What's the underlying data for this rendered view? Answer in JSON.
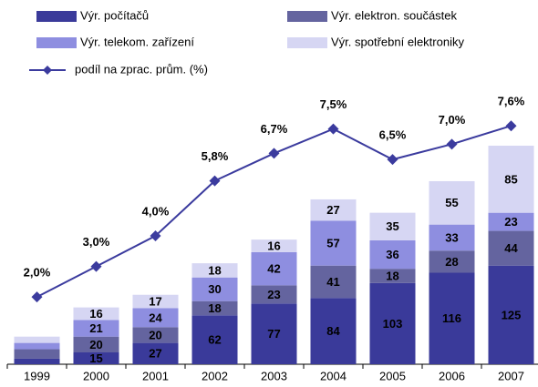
{
  "chart_data": {
    "type": "bar",
    "categories": [
      "1999",
      "2000",
      "2001",
      "2002",
      "2003",
      "2004",
      "2005",
      "2006",
      "2007"
    ],
    "series": [
      {
        "name": "Výr. počítačů",
        "color": "#3a3a9a",
        "values": [
          7,
          15,
          27,
          62,
          77,
          84,
          103,
          116,
          125
        ],
        "value_labels": [
          null,
          "15",
          "27",
          "62",
          "77",
          "84",
          "103",
          "116",
          "125"
        ]
      },
      {
        "name": "Výr. elektron. součástek",
        "color": "#64649f",
        "values": [
          12,
          20,
          20,
          18,
          23,
          41,
          18,
          28,
          44
        ],
        "value_labels": [
          null,
          "20",
          "20",
          "18",
          "23",
          "41",
          "18",
          "28",
          "44"
        ]
      },
      {
        "name": "Výr. telekom. zařízení",
        "color": "#8e8ee0",
        "values": [
          8,
          21,
          24,
          30,
          42,
          57,
          36,
          33,
          23
        ],
        "value_labels": [
          null,
          "21",
          "24",
          "30",
          "42",
          "57",
          "36",
          "33",
          "23"
        ]
      },
      {
        "name": "Výr. spotřební elektroniky",
        "color": "#d6d6f3",
        "values": [
          8,
          16,
          17,
          18,
          16,
          27,
          35,
          55,
          85
        ],
        "value_labels": [
          null,
          "16",
          "17",
          "18",
          "16",
          "27",
          "35",
          "55",
          "85"
        ]
      },
      {
        "name": "podíl na zprac. prům. (%)",
        "color": "#3b3b9e",
        "axis": "y2",
        "type": "line",
        "values": [
          2.0,
          3.0,
          4.0,
          5.8,
          6.7,
          7.5,
          6.5,
          7.0,
          7.6
        ],
        "value_labels": [
          "2,0%",
          "3,0%",
          "4,0%",
          "5,8%",
          "6,7%",
          "7,5%",
          "6,5%",
          "7,0%",
          "7,6%"
        ]
      }
    ],
    "ylim": [
      0,
      337
    ],
    "y2lim": [
      -0.2,
      8.5
    ]
  }
}
